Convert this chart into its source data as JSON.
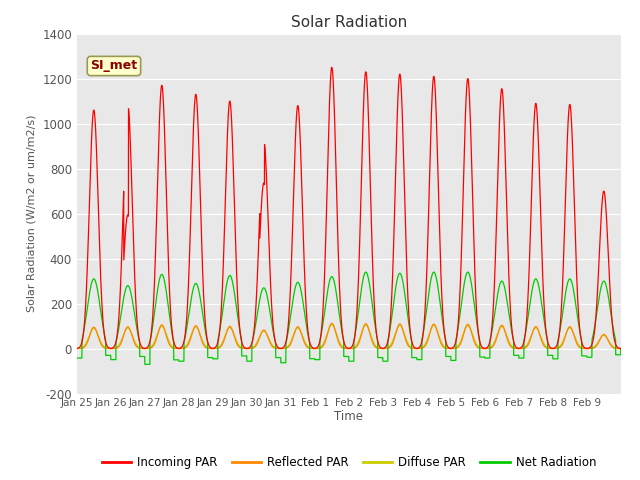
{
  "title": "Solar Radiation",
  "ylabel": "Solar Radiation (W/m2 or um/m2/s)",
  "xlabel": "Time",
  "ylim": [
    -200,
    1400
  ],
  "xlim": [
    0,
    16
  ],
  "xtick_labels": [
    "Jan 25",
    "Jan 26",
    "Jan 27",
    "Jan 28",
    "Jan 29",
    "Jan 30",
    "Jan 31",
    "Feb 1",
    "Feb 2",
    "Feb 3",
    "Feb 4",
    "Feb 5",
    "Feb 6",
    "Feb 7",
    "Feb 8",
    "Feb 9"
  ],
  "site_label": "SI_met",
  "bg_color": "#e8e8e8",
  "colors": {
    "incoming": "#ff0000",
    "reflected": "#ff8800",
    "diffuse": "#cccc00",
    "net": "#00cc00"
  },
  "legend_labels": [
    "Incoming PAR",
    "Reflected PAR",
    "Diffuse PAR",
    "Net Radiation"
  ],
  "legend_colors": [
    "#ff0000",
    "#ff8800",
    "#cccc00",
    "#00cc00"
  ],
  "yticks": [
    -200,
    0,
    200,
    400,
    600,
    800,
    1000,
    1200,
    1400
  ],
  "incoming_peaks": [
    1060,
    1080,
    1170,
    1130,
    1100,
    920,
    1080,
    1250,
    1230,
    1220,
    1210,
    1200,
    1155,
    1090,
    1085,
    700
  ],
  "net_peaks": [
    310,
    280,
    330,
    290,
    325,
    270,
    295,
    320,
    340,
    335,
    340,
    340,
    300,
    310,
    310,
    300
  ],
  "night_neg": [
    -60,
    -70,
    -100,
    -80,
    -65,
    -80,
    -90,
    -70,
    -80,
    -80,
    -70,
    -75,
    -60,
    -60,
    -65,
    -55
  ],
  "cloud_effect_days": [
    1,
    5
  ],
  "cloud_factors": [
    0.55,
    0.8
  ]
}
